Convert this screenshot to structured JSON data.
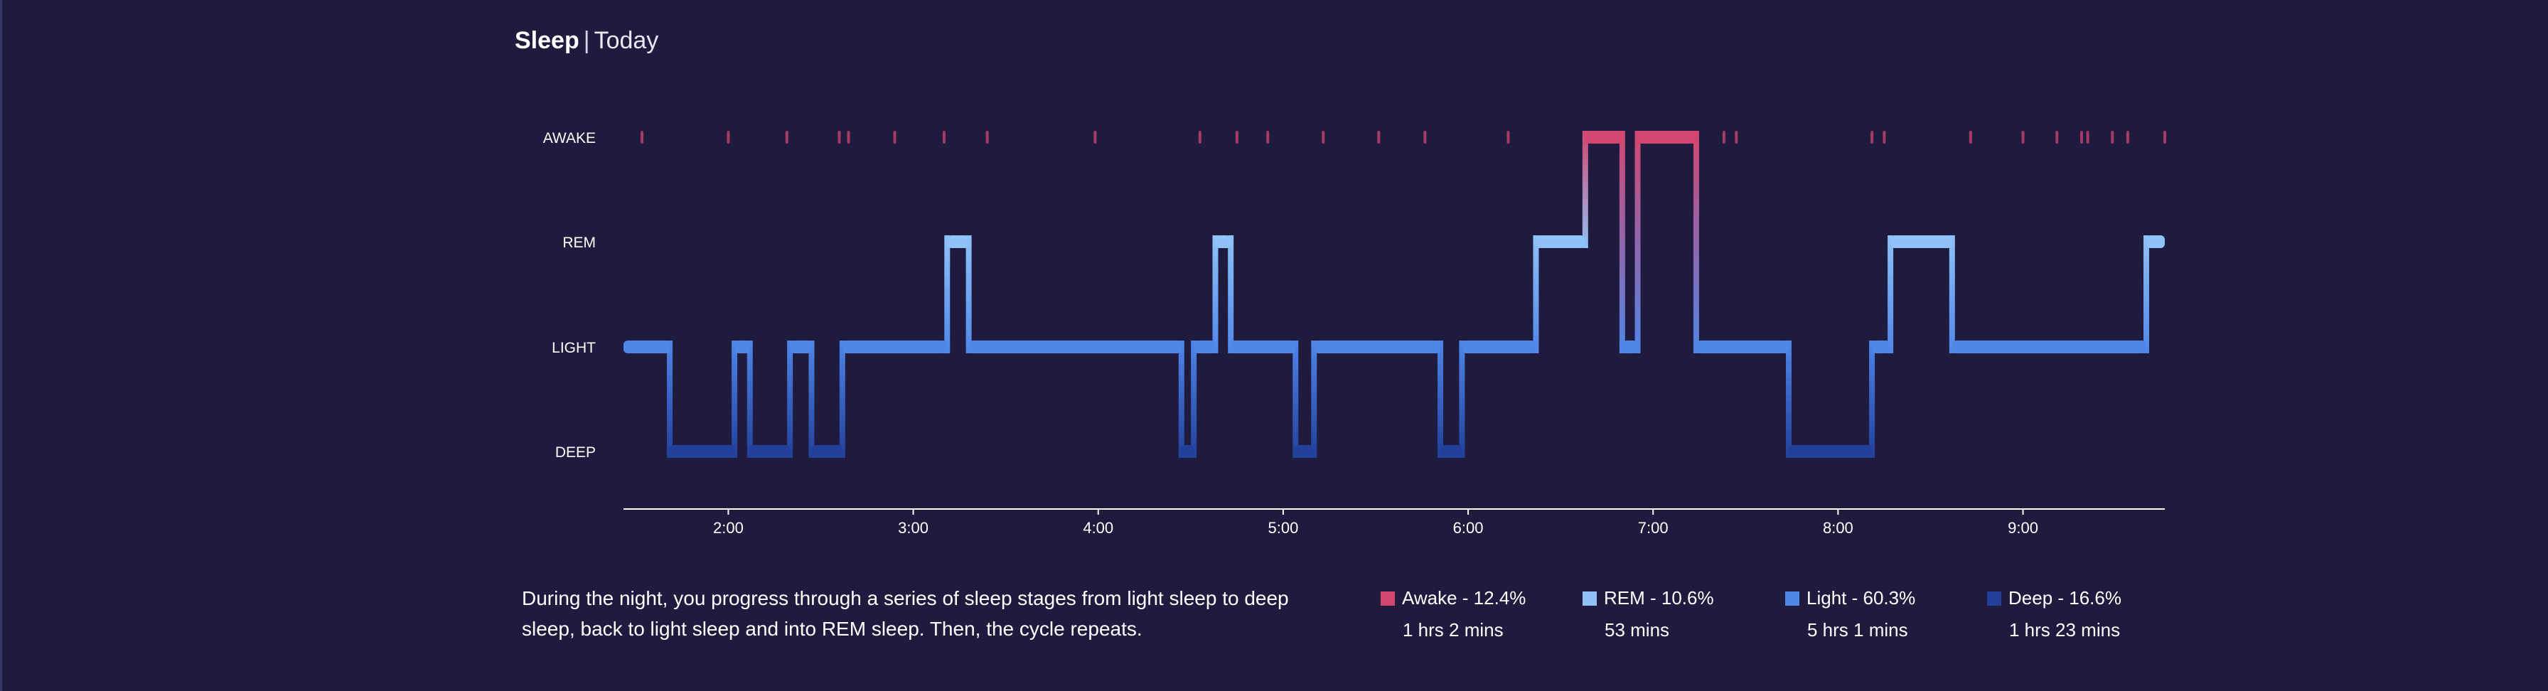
{
  "header": {
    "title": "Sleep",
    "separator": "|",
    "period": "Today"
  },
  "description": "During the night, you progress through a series of sleep stages from light sleep to deep sleep, back to light sleep and into REM sleep. Then, the cycle repeats.",
  "colors": {
    "background": "#1e1b3e",
    "awake": "#d3466f",
    "rem": "#90c2f7",
    "light": "#4f86e8",
    "deep": "#223f9a",
    "axis": "#ffffff"
  },
  "legend": [
    {
      "key": "awake",
      "label": "Awake - 12.4%",
      "duration": "1 hrs 2 mins"
    },
    {
      "key": "rem",
      "label": "REM - 10.6%",
      "duration": "53 mins"
    },
    {
      "key": "light",
      "label": "Light - 60.3%",
      "duration": "5 hrs 1 mins"
    },
    {
      "key": "deep",
      "label": "Deep - 16.6%",
      "duration": "1 hrs 23 mins"
    }
  ],
  "chart_data": {
    "type": "area",
    "x_range": [
      "1:26",
      "9:46"
    ],
    "stages": [
      "DEEP",
      "LIGHT",
      "REM",
      "AWAKE"
    ],
    "x_ticks": [
      "2:00",
      "3:00",
      "4:00",
      "5:00",
      "6:00",
      "7:00",
      "8:00",
      "9:00"
    ],
    "segments": [
      {
        "stage": "LIGHT",
        "start": "1:26",
        "end": "1:41"
      },
      {
        "stage": "DEEP",
        "start": "1:41",
        "end": "2:02"
      },
      {
        "stage": "LIGHT",
        "start": "2:02",
        "end": "2:07"
      },
      {
        "stage": "DEEP",
        "start": "2:07",
        "end": "2:20"
      },
      {
        "stage": "LIGHT",
        "start": "2:20",
        "end": "2:27"
      },
      {
        "stage": "DEEP",
        "start": "2:27",
        "end": "2:37"
      },
      {
        "stage": "LIGHT",
        "start": "2:37",
        "end": "3:11"
      },
      {
        "stage": "REM",
        "start": "3:11",
        "end": "3:18"
      },
      {
        "stage": "LIGHT",
        "start": "3:18",
        "end": "4:27"
      },
      {
        "stage": "DEEP",
        "start": "4:27",
        "end": "4:31"
      },
      {
        "stage": "LIGHT",
        "start": "4:31",
        "end": "4:38"
      },
      {
        "stage": "REM",
        "start": "4:38",
        "end": "4:43"
      },
      {
        "stage": "LIGHT",
        "start": "4:43",
        "end": "5:04"
      },
      {
        "stage": "DEEP",
        "start": "5:04",
        "end": "5:10"
      },
      {
        "stage": "LIGHT",
        "start": "5:10",
        "end": "5:51"
      },
      {
        "stage": "DEEP",
        "start": "5:51",
        "end": "5:58"
      },
      {
        "stage": "LIGHT",
        "start": "5:58",
        "end": "6:22"
      },
      {
        "stage": "REM",
        "start": "6:22",
        "end": "6:38"
      },
      {
        "stage": "AWAKE",
        "start": "6:38",
        "end": "6:50"
      },
      {
        "stage": "LIGHT",
        "start": "6:50",
        "end": "6:55"
      },
      {
        "stage": "AWAKE",
        "start": "6:55",
        "end": "7:14"
      },
      {
        "stage": "LIGHT",
        "start": "7:14",
        "end": "7:44"
      },
      {
        "stage": "DEEP",
        "start": "7:44",
        "end": "8:11"
      },
      {
        "stage": "LIGHT",
        "start": "8:11",
        "end": "8:17"
      },
      {
        "stage": "REM",
        "start": "8:17",
        "end": "8:37"
      },
      {
        "stage": "LIGHT",
        "start": "8:37",
        "end": "9:40"
      },
      {
        "stage": "REM",
        "start": "9:40",
        "end": "9:46"
      }
    ],
    "awake_blips": [
      "1:32",
      "2:00",
      "2:19",
      "2:36",
      "2:39",
      "2:54",
      "3:10",
      "3:24",
      "3:59",
      "4:33",
      "4:45",
      "4:55",
      "5:13",
      "5:31",
      "5:46",
      "6:13",
      "7:23",
      "7:27",
      "8:11",
      "8:15",
      "8:43",
      "9:00",
      "9:11",
      "9:19",
      "9:21",
      "9:29",
      "9:34",
      "9:46"
    ],
    "legend_position": "bottom-right",
    "grid": false
  }
}
